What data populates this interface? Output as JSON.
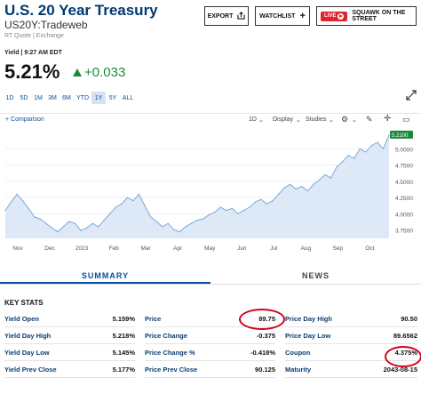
{
  "header": {
    "title": "U.S. 20 Year Treasury",
    "symbol": "US20Y:Tradeweb",
    "source": "RT Quote | Exchange",
    "export_label": "EXPORT",
    "watchlist_label": "WATCHLIST",
    "live_label": "LIVE",
    "squawk_label": "SQUAWK ON THE STREET"
  },
  "quote": {
    "time": "Yield | 9:27 AM EDT",
    "value": "5.21%",
    "change": "+0.033",
    "change_color": "#1a8a3c"
  },
  "ranges": [
    "1D",
    "5D",
    "1M",
    "3M",
    "6M",
    "YTD",
    "1Y",
    "5Y",
    "ALL"
  ],
  "active_range": "1Y",
  "toolbar": {
    "comparison": "+ Comparison",
    "interval": "1D",
    "display": "Display",
    "studies": "Studies"
  },
  "chart_data": {
    "type": "area",
    "x_labels": [
      "Nov",
      "Dec",
      "2023",
      "Feb",
      "Mar",
      "Apr",
      "May",
      "Jun",
      "Jul",
      "Aug",
      "Sep",
      "Oct"
    ],
    "y_ticks": [
      "5.0000",
      "4.7500",
      "4.5000",
      "4.2500",
      "4.0000",
      "3.7500"
    ],
    "ylim": [
      3.62,
      5.25
    ],
    "last_value_label": "5.2100",
    "color": "#7fa8d6",
    "values": [
      4.05,
      4.18,
      4.3,
      4.2,
      4.08,
      3.95,
      3.92,
      3.85,
      3.78,
      3.72,
      3.8,
      3.88,
      3.85,
      3.74,
      3.78,
      3.85,
      3.8,
      3.9,
      4.0,
      4.1,
      4.15,
      4.25,
      4.2,
      4.3,
      4.12,
      3.95,
      3.88,
      3.8,
      3.85,
      3.75,
      3.72,
      3.8,
      3.85,
      3.9,
      3.92,
      3.98,
      4.02,
      4.1,
      4.05,
      4.08,
      4.0,
      4.05,
      4.1,
      4.18,
      4.22,
      4.15,
      4.2,
      4.3,
      4.4,
      4.45,
      4.38,
      4.42,
      4.35,
      4.45,
      4.52,
      4.6,
      4.55,
      4.72,
      4.8,
      4.9,
      4.85,
      5.0,
      4.95,
      5.05,
      5.1,
      5.0,
      5.21
    ]
  },
  "tabs": [
    "SUMMARY",
    "NEWS"
  ],
  "key_stats": {
    "title": "KEY STATS",
    "col1": [
      {
        "label": "Yield Open",
        "value": "5.159%"
      },
      {
        "label": "Yield Day High",
        "value": "5.218%"
      },
      {
        "label": "Yield Day Low",
        "value": "5.145%"
      },
      {
        "label": "Yield Prev Close",
        "value": "5.177%"
      }
    ],
    "col2": [
      {
        "label": "Price",
        "value": "89.75"
      },
      {
        "label": "Price Change",
        "value": "-0.375"
      },
      {
        "label": "Price Change %",
        "value": "-0.418%"
      },
      {
        "label": "Price Prev Close",
        "value": "90.125"
      }
    ],
    "col3": [
      {
        "label": "Price Day High",
        "value": "90.50"
      },
      {
        "label": "Price Day Low",
        "value": "89.6562"
      },
      {
        "label": "Coupon",
        "value": "4.375%"
      },
      {
        "label": "Maturity",
        "value": "2043-08-15"
      }
    ],
    "highlight_color": "#d0021b"
  }
}
